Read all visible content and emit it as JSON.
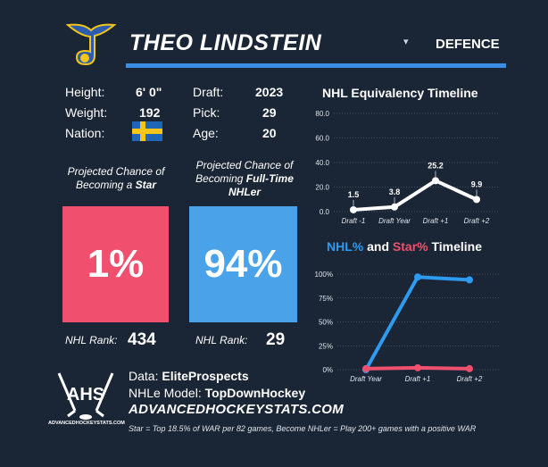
{
  "player": {
    "name": "THEO LINDSTEIN",
    "dropdown_icon": "▾",
    "position": "DEFENCE"
  },
  "bio": {
    "height_label": "Height:",
    "height": "6' 0\"",
    "weight_label": "Weight:",
    "weight": "192",
    "nation_label": "Nation:",
    "nation_flag": "sweden-flag",
    "draft_label": "Draft:",
    "draft": "2023",
    "pick_label": "Pick:",
    "pick": "29",
    "age_label": "Age:",
    "age": "20"
  },
  "projections": {
    "star": {
      "label_line1": "Projected Chance of",
      "label_line2_prefix": "Becoming a ",
      "label_line2_bold": "Star",
      "value": "1%",
      "color": "#f0506e"
    },
    "nhler": {
      "label_line1": "Projected Chance of",
      "label_line2_prefix": "Becoming ",
      "label_line2_bold": "Full-Time",
      "label_line3_bold": "NHLer",
      "value": "94%",
      "color": "#4aa3e8"
    }
  },
  "ranks": {
    "label": "NHL Rank:",
    "star_rank": "434",
    "nhler_rank": "29"
  },
  "sources": {
    "data_label": "Data: ",
    "data_value": "EliteProspects",
    "model_label": "NHLe Model: ",
    "model_value": "TopDownHockey",
    "site": "ADVANCEDHOCKEYSTATS.COM",
    "logo_text": "AHS",
    "logo_caption": "ADVANCEDHOCKEYSTATS.COM",
    "footnote": "Star = Top 18.5% of WAR per 82 games, Become NHLer = Play 200+ games with a positive WAR"
  },
  "chart_data": [
    {
      "type": "line",
      "title": "NHL Equivalency Timeline",
      "categories": [
        "Draft -1",
        "Draft Year",
        "Draft +1",
        "Draft +2"
      ],
      "values": [
        1.5,
        3.8,
        25.2,
        9.9
      ],
      "data_labels": [
        "1.5",
        "3.8",
        "25.2",
        "9.9"
      ],
      "yticks": [
        "0.0",
        "20.0",
        "40.0",
        "60.0",
        "80.0"
      ],
      "ylim": [
        0,
        80
      ],
      "line_color": "#ffffff"
    },
    {
      "type": "line",
      "title_part1": "NHL%",
      "title_part2": " and ",
      "title_part3": "Star%",
      "title_part4": " Timeline",
      "categories": [
        "Draft Year",
        "Draft +1",
        "Draft +2"
      ],
      "yticks": [
        "0%",
        "25%",
        "50%",
        "75%",
        "100%"
      ],
      "ylim": [
        0,
        100
      ],
      "series": [
        {
          "name": "NHL%",
          "values": [
            0,
            97,
            94
          ],
          "color": "#2e9bf0"
        },
        {
          "name": "Star%",
          "values": [
            1,
            2,
            1
          ],
          "color": "#f0506e"
        }
      ]
    }
  ]
}
